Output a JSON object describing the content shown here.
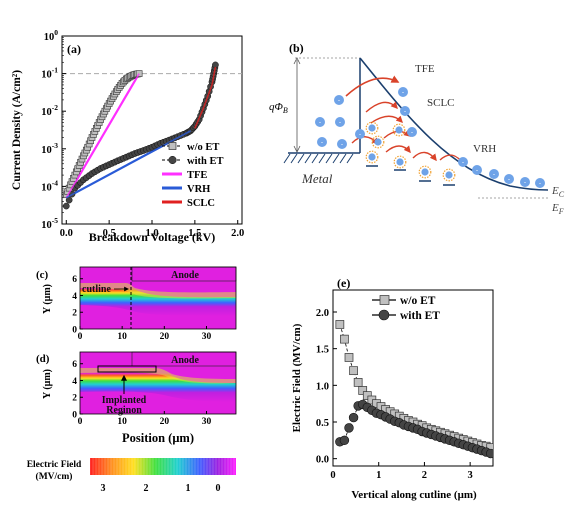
{
  "panel_a": {
    "label": "(a)",
    "xlabel": "Breakdown Voltage (kV)",
    "ylabel": "Current Density (A/cm²)",
    "xticks": [
      "0.0",
      "0.5",
      "1.0",
      "1.5",
      "2.0"
    ],
    "yticks": [
      {
        "base": "10",
        "exp": "0"
      },
      {
        "base": "10",
        "exp": "-1"
      },
      {
        "base": "10",
        "exp": "-2"
      },
      {
        "base": "10",
        "exp": "-3"
      },
      {
        "base": "10",
        "exp": "-4"
      },
      {
        "base": "10",
        "exp": "-5"
      }
    ],
    "legend": [
      "w/o  ET",
      "with  ET",
      "TFE",
      "VRH",
      "SCLC"
    ]
  },
  "panel_b": {
    "label": "(b)",
    "barrier_symbol": "qΦ",
    "barrier_sub": "B",
    "tfe": "TFE",
    "sclc": "SCLC",
    "vrh": "VRH",
    "metal": "Metal",
    "ec": "E",
    "ec_sub": "C",
    "ef": "E",
    "ef_sub": "F",
    "electron_symbol": "e"
  },
  "panel_c": {
    "label": "(c)",
    "anode": "Anode",
    "cutline": "cutline",
    "ylabel": "Y (μm)",
    "yticks": [
      "6",
      "4",
      "2",
      "0"
    ],
    "xticks": [
      "0",
      "10",
      "20",
      "30"
    ]
  },
  "panel_d": {
    "label": "(d)",
    "anode": "Anode",
    "implanted": "Implanted",
    "region": "Reginon",
    "ylabel": "Y (μm)",
    "yticks": [
      "6",
      "4",
      "2",
      "0"
    ],
    "xticks": [
      "0",
      "10",
      "20",
      "30"
    ],
    "xlabel": "Position (μm)"
  },
  "colorbar": {
    "title_line1": "Electric Field",
    "title_line2": "(MV/cm)",
    "ticks": [
      "3",
      "2",
      "1",
      "0"
    ]
  },
  "panel_e": {
    "label": "(e)",
    "xlabel": "Vertical along  cutline (μm)",
    "ylabel": "Electric Field (MV/cm)",
    "xticks": [
      "0",
      "1",
      "2",
      "3"
    ],
    "yticks": [
      "0.0",
      "0.5",
      "1.0",
      "1.5",
      "2.0"
    ],
    "legend": [
      "w/o  ET",
      "with ET"
    ]
  },
  "colors": {
    "gray_marker": "#c0c0c0",
    "dark_marker": "#444444",
    "tfe": "#ff30ff",
    "vrh": "#2a5bd7",
    "sclc": "#e02020",
    "arrow": "#d9432a",
    "band": "#1b3f6e",
    "electron": "#6fa3e8",
    "trap": "#f0a030"
  },
  "chart_data": [
    {
      "type": "scatter",
      "panel": "a",
      "xlabel": "Breakdown Voltage (kV)",
      "ylabel": "Current Density (A/cm²)",
      "xlim": [
        -0.05,
        2.05
      ],
      "ylim": [
        1e-05,
        1
      ],
      "yscale": "log",
      "reference_line_y": 0.1,
      "series": [
        {
          "name": "w/o  ET",
          "x": [
            0.0,
            0.05,
            0.1,
            0.15,
            0.2,
            0.25,
            0.3,
            0.35,
            0.4,
            0.45,
            0.5,
            0.55,
            0.6,
            0.65,
            0.7,
            0.75,
            0.8,
            0.85
          ],
          "y": [
            6e-05,
            0.00011,
            0.0002,
            0.00036,
            0.00065,
            0.0011,
            0.002,
            0.0035,
            0.006,
            0.01,
            0.016,
            0.025,
            0.038,
            0.055,
            0.072,
            0.085,
            0.095,
            0.1
          ]
        },
        {
          "name": "with  ET",
          "x": [
            0.0,
            0.1,
            0.2,
            0.3,
            0.4,
            0.5,
            0.6,
            0.7,
            0.8,
            0.9,
            1.0,
            1.1,
            1.2,
            1.3,
            1.4,
            1.45,
            1.5,
            1.55,
            1.6,
            1.65,
            1.7,
            1.72,
            1.74
          ],
          "y": [
            3e-05,
            9e-05,
            0.00015,
            0.00022,
            0.0003,
            0.00038,
            0.00048,
            0.0006,
            0.00075,
            0.0009,
            0.0011,
            0.0014,
            0.0017,
            0.0021,
            0.0026,
            0.003,
            0.004,
            0.006,
            0.012,
            0.025,
            0.06,
            0.1,
            0.17
          ]
        },
        {
          "name": "TFE",
          "x": [
            0.0,
            0.85
          ],
          "y": [
            5e-05,
            0.1
          ]
        },
        {
          "name": "VRH",
          "x": [
            0.0,
            1.45
          ],
          "y": [
            5e-05,
            0.003
          ]
        },
        {
          "name": "SCLC",
          "x": [
            1.5,
            1.6,
            1.7,
            1.74
          ],
          "y": [
            0.0035,
            0.012,
            0.05,
            0.15
          ]
        }
      ]
    },
    {
      "type": "scatter",
      "panel": "e",
      "xlabel": "Vertical along  cutline (μm)",
      "ylabel": "Electric Field (MV/cm)",
      "xlim": [
        0,
        3.5
      ],
      "ylim": [
        -0.1,
        2.3
      ],
      "series": [
        {
          "name": "w/o  ET",
          "x": [
            0.15,
            0.25,
            0.35,
            0.45,
            0.55,
            0.65,
            0.75,
            0.85,
            0.95,
            1.05,
            1.15,
            1.25,
            1.35,
            1.45,
            1.55,
            1.65,
            1.75,
            1.85,
            1.95,
            2.05,
            2.15,
            2.25,
            2.35,
            2.45,
            2.55,
            2.65,
            2.75,
            2.85,
            2.95,
            3.05,
            3.15,
            3.25,
            3.35,
            3.45
          ],
          "y": [
            1.83,
            1.63,
            1.38,
            1.2,
            1.04,
            0.93,
            0.86,
            0.8,
            0.75,
            0.71,
            0.67,
            0.64,
            0.61,
            0.58,
            0.55,
            0.52,
            0.5,
            0.47,
            0.45,
            0.42,
            0.4,
            0.38,
            0.36,
            0.34,
            0.32,
            0.3,
            0.28,
            0.26,
            0.24,
            0.22,
            0.2,
            0.18,
            0.17,
            0.15
          ]
        },
        {
          "name": "with ET",
          "x": [
            0.15,
            0.25,
            0.35,
            0.45,
            0.55,
            0.65,
            0.75,
            0.85,
            0.95,
            1.05,
            1.15,
            1.25,
            1.35,
            1.45,
            1.55,
            1.65,
            1.75,
            1.85,
            1.95,
            2.05,
            2.15,
            2.25,
            2.35,
            2.45,
            2.55,
            2.65,
            2.75,
            2.85,
            2.95,
            3.05,
            3.15,
            3.25,
            3.35,
            3.45
          ],
          "y": [
            0.23,
            0.25,
            0.42,
            0.56,
            0.72,
            0.74,
            0.7,
            0.66,
            0.62,
            0.6,
            0.57,
            0.54,
            0.51,
            0.49,
            0.46,
            0.44,
            0.42,
            0.4,
            0.37,
            0.35,
            0.33,
            0.31,
            0.29,
            0.27,
            0.25,
            0.23,
            0.21,
            0.19,
            0.17,
            0.15,
            0.13,
            0.11,
            0.09,
            0.07
          ]
        }
      ]
    }
  ]
}
